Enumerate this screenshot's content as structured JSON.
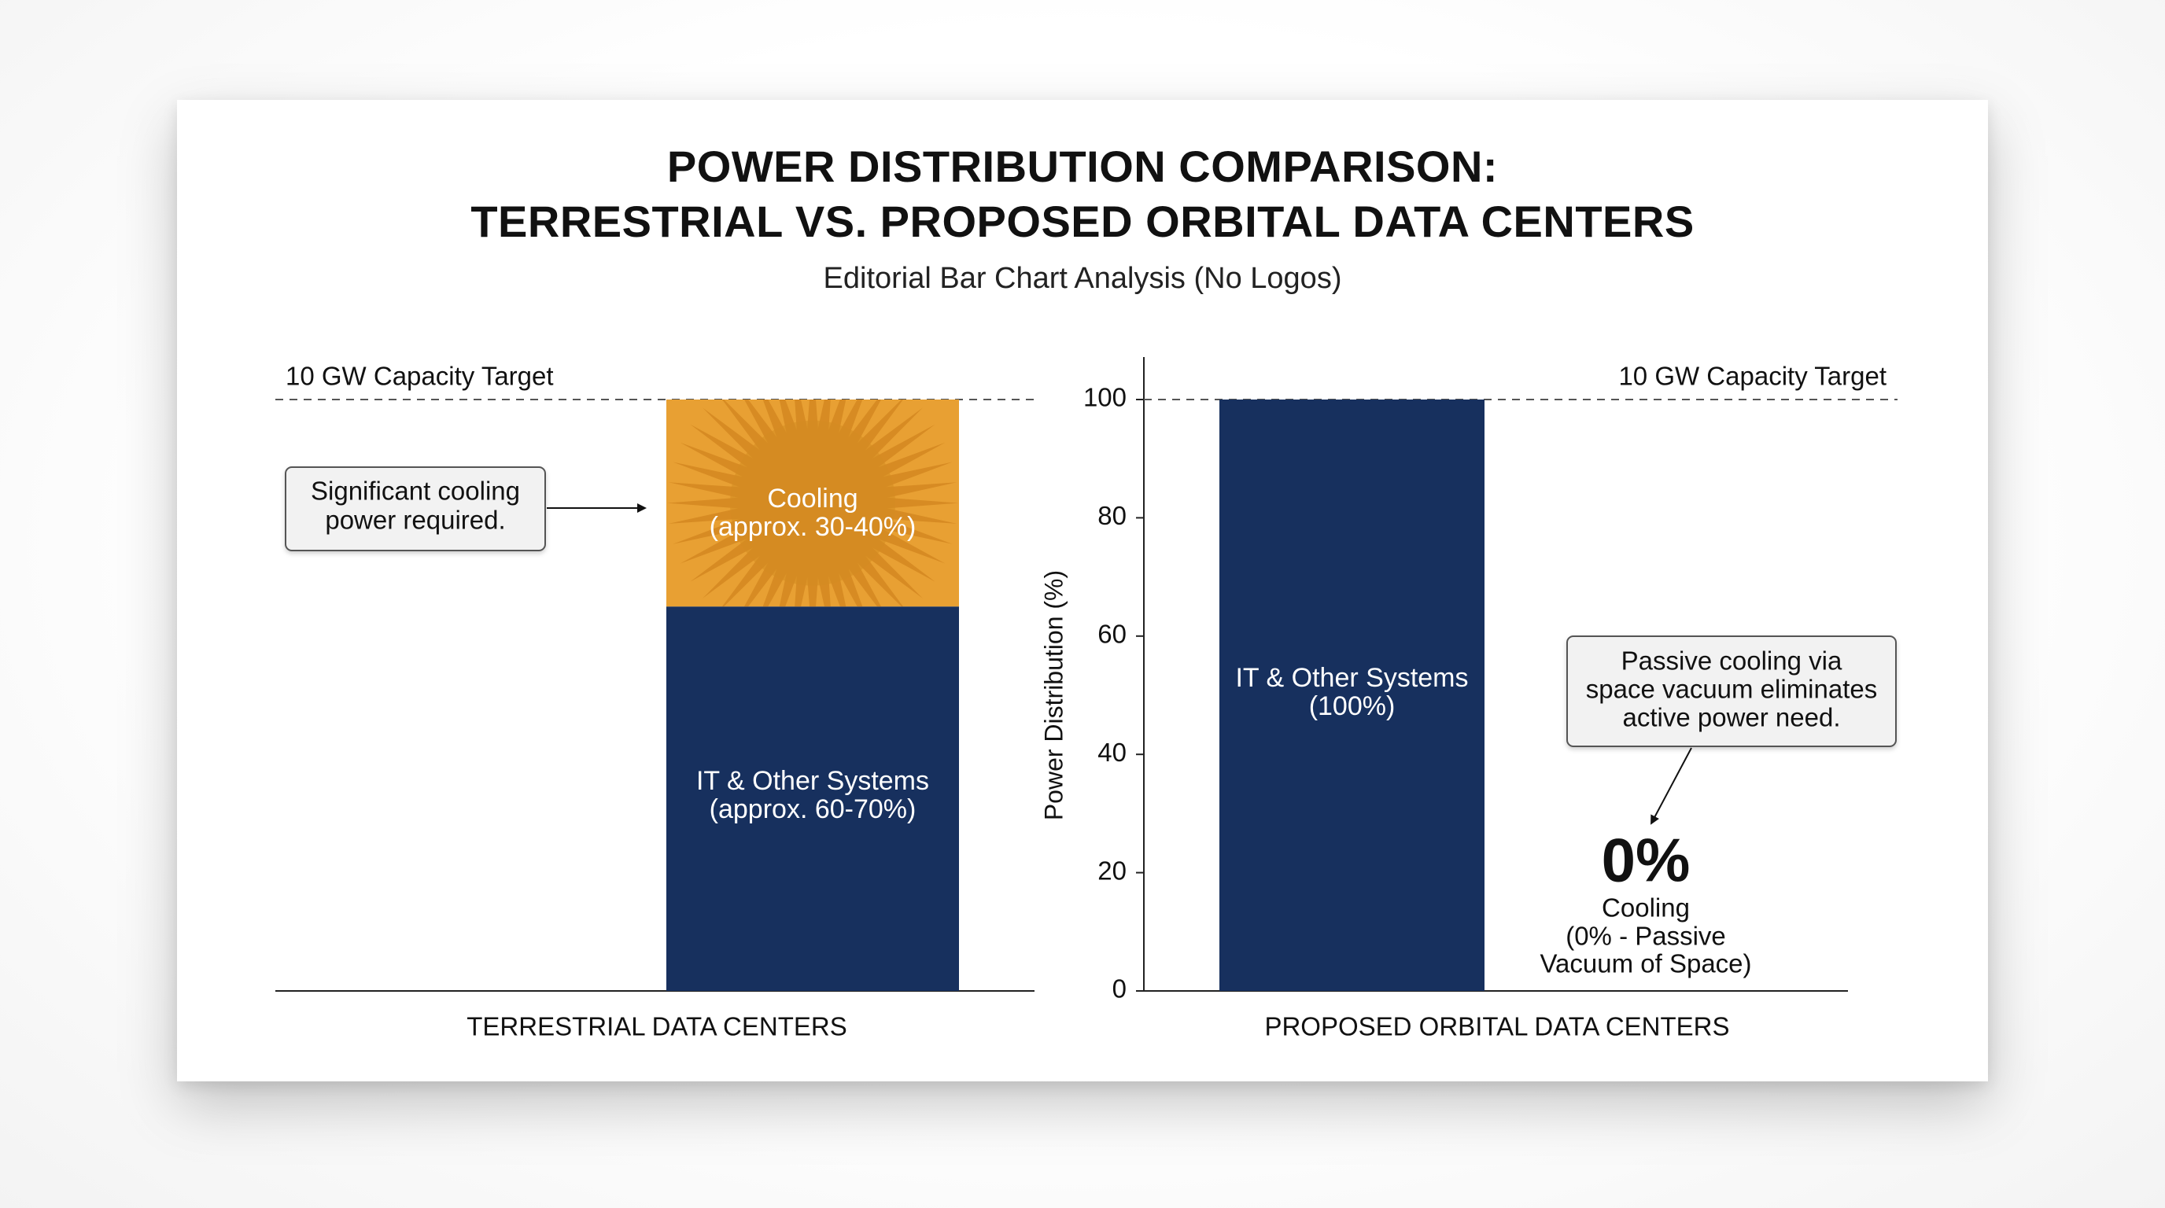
{
  "title_lines": [
    "POWER DISTRIBUTION COMPARISON:",
    "TERRESTRIAL VS. PROPOSED ORBITAL DATA CENTERS"
  ],
  "subtitle": "Editorial Bar Chart Analysis (No Logos)",
  "colors": {
    "it_systems": "#17305e",
    "cooling": "#e8a033",
    "cooling_rays": "#c97a16",
    "axis": "#222222"
  },
  "chart_data": [
    {
      "type": "bar",
      "categories": [
        "TERRESTRIAL DATA CENTERS"
      ],
      "series": [
        {
          "name": "IT & Other Systems",
          "values": [
            65
          ],
          "label_lines": [
            "IT & Other Systems",
            "(approx. 60-70%)"
          ]
        },
        {
          "name": "Cooling",
          "values": [
            35
          ],
          "label_lines": [
            "Cooling",
            "(approx. 30-40%)"
          ]
        }
      ],
      "stacked": true,
      "reference_line": {
        "value": 100,
        "label": "10 GW Capacity Target"
      },
      "annotation": {
        "lines": [
          "Significant cooling",
          "power required."
        ]
      },
      "ylim": [
        0,
        100
      ]
    },
    {
      "type": "bar",
      "categories": [
        "PROPOSED ORBITAL DATA CENTERS"
      ],
      "series": [
        {
          "name": "IT & Other Systems",
          "values": [
            100
          ],
          "label_lines": [
            "IT & Other Systems",
            "(100%)"
          ]
        },
        {
          "name": "Cooling",
          "values": [
            0
          ],
          "big_label": "0%",
          "label_lines": [
            "Cooling",
            "(0% - Passive",
            "Vacuum of Space)"
          ]
        }
      ],
      "ylabel": "Power Distribution (%)",
      "yticks": [
        0,
        20,
        40,
        60,
        80,
        100
      ],
      "ylim": [
        0,
        100
      ],
      "grid": false,
      "reference_line": {
        "value": 100,
        "label": "10 GW Capacity Target"
      },
      "annotation": {
        "lines": [
          "Passive cooling via",
          "space vacuum eliminates",
          "active power need."
        ]
      }
    }
  ]
}
